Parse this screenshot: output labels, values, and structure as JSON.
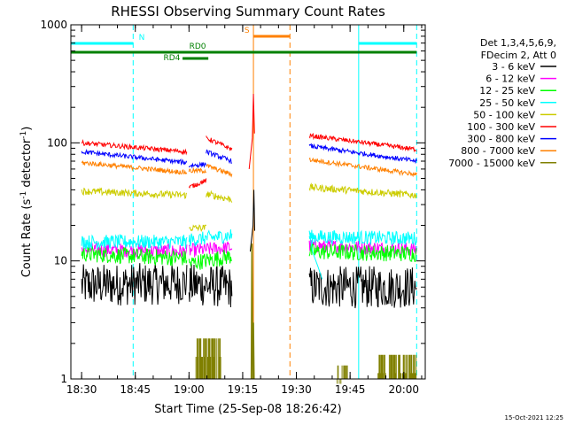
{
  "chart_data": {
    "type": "line",
    "title": "RHESSI Observing Summary Count Rates",
    "xlabel": "Start Time (25-Sep-08 18:26:42)",
    "ylabel_main": "Count Rate (s",
    "ylabel_sup1": "-1",
    "ylabel_mid": " detector",
    "ylabel_sup2": "-1",
    "ylabel_end": ")",
    "y_scale": "log",
    "ylim": [
      1,
      1000
    ],
    "xlim_minutes": [
      18.45,
      20.1
    ],
    "x_ticks": [
      {
        "value": 18.5,
        "label": "18:30"
      },
      {
        "value": 18.75,
        "label": "18:45"
      },
      {
        "value": 19.0,
        "label": "19:00"
      },
      {
        "value": 19.25,
        "label": "19:15"
      },
      {
        "value": 19.5,
        "label": "19:30"
      },
      {
        "value": 19.75,
        "label": "19:45"
      },
      {
        "value": 20.0,
        "label": "20:00"
      }
    ],
    "y_ticks": [
      {
        "value": 1,
        "label": "1"
      },
      {
        "value": 10,
        "label": "10"
      },
      {
        "value": 100,
        "label": "100"
      },
      {
        "value": 1000,
        "label": "1000"
      }
    ],
    "legend_placement": "right",
    "legend_header": [
      "Det 1,3,4,5,6,9,",
      "FDecim 2, Att 0"
    ],
    "series": [
      {
        "name": "3 - 6 keV",
        "color": "#000000",
        "segments": [
          [
            18.5,
            6.2,
            18.99,
            6.5
          ],
          [
            19.0,
            6.3,
            19.2,
            6.0
          ],
          [
            19.56,
            6.0,
            20.06,
            6.0
          ]
        ],
        "noise": 0.18
      },
      {
        "name": "6 - 12 keV",
        "color": "#ff00ff",
        "segments": [
          [
            18.5,
            12.5,
            18.99,
            12.0
          ],
          [
            19.0,
            12.2,
            19.2,
            13.0
          ],
          [
            19.56,
            13.5,
            20.06,
            12.5
          ]
        ],
        "noise": 0.06
      },
      {
        "name": "12 - 25 keV",
        "color": "#00ff00",
        "segments": [
          [
            18.5,
            11.5,
            18.99,
            10.5
          ],
          [
            19.0,
            9.5,
            19.2,
            11.0
          ],
          [
            19.56,
            12.0,
            20.06,
            11.5
          ]
        ],
        "noise": 0.07
      },
      {
        "name": "25 - 50 keV",
        "color": "#00ffff",
        "segments": [
          [
            18.5,
            14.5,
            18.99,
            14.5
          ],
          [
            19.0,
            15.0,
            19.2,
            16.5
          ],
          [
            19.56,
            16.0,
            20.06,
            15.5
          ]
        ],
        "noise": 0.06
      },
      {
        "name": "50 - 100 keV",
        "color": "#cccc00",
        "segments": [
          [
            18.5,
            39,
            18.99,
            36
          ],
          [
            19.0,
            19,
            19.08,
            19
          ],
          [
            19.08,
            37,
            19.2,
            33
          ],
          [
            19.56,
            42,
            20.06,
            36
          ]
        ],
        "noise": 0.03
      },
      {
        "name": "100 - 300 keV",
        "color": "#ff0000",
        "segments": [
          [
            18.5,
            100,
            18.99,
            84
          ],
          [
            19.0,
            42,
            19.08,
            48
          ],
          [
            19.08,
            110,
            19.2,
            88
          ],
          [
            19.56,
            115,
            20.06,
            88
          ]
        ],
        "noise": 0.02
      },
      {
        "name": "300 - 800 keV",
        "color": "#0000ff",
        "segments": [
          [
            18.5,
            84,
            18.99,
            68
          ],
          [
            19.0,
            64,
            19.08,
            66
          ],
          [
            19.08,
            84,
            19.2,
            70
          ],
          [
            19.56,
            94,
            20.06,
            70
          ]
        ],
        "noise": 0.02
      },
      {
        "name": "800 - 7000 keV",
        "color": "#ff8000",
        "segments": [
          [
            18.5,
            68,
            18.99,
            56
          ],
          [
            19.0,
            58,
            19.08,
            58
          ],
          [
            19.08,
            64,
            19.2,
            54
          ],
          [
            19.56,
            72,
            20.06,
            54
          ]
        ],
        "noise": 0.02
      },
      {
        "name": "7000 - 15000 keV",
        "color": "#808000",
        "segments": [
          [
            19.03,
            2.2,
            19.15,
            1.8
          ],
          [
            19.69,
            1.3,
            19.74,
            1.3
          ],
          [
            19.88,
            1.6,
            20.06,
            1.6
          ]
        ],
        "noise": 0.0
      }
    ],
    "flag_bars": [
      {
        "label": "N",
        "color": "#00ffff",
        "y": 49,
        "ranges": [
          [
            18.45,
            18.74
          ],
          [
            19.79,
            20.06
          ]
        ],
        "label_at": 18.78
      },
      {
        "label": "RD0",
        "color": "#008000",
        "y": 59,
        "ranges": [
          [
            18.45,
            20.06
          ]
        ],
        "label_at": 19.04
      },
      {
        "label": "RD4",
        "color": "#008000",
        "y": 66,
        "ranges": [
          [
            18.97,
            19.09
          ]
        ],
        "label_at": 18.92
      },
      {
        "label": "S",
        "color": "#ff8000",
        "y": 41,
        "ranges": [
          [
            19.3,
            19.47
          ]
        ],
        "label_at": 19.27
      }
    ],
    "vertical_lines": [
      {
        "x": 18.45,
        "color": "#00ffff",
        "style": "solid"
      },
      {
        "x": 18.74,
        "color": "#00ffff",
        "style": "dashed"
      },
      {
        "x": 19.79,
        "color": "#00ffff",
        "style": "solid"
      },
      {
        "x": 20.06,
        "color": "#00ffff",
        "style": "dashed"
      },
      {
        "x": 19.3,
        "color": "#ff8000",
        "style": "solid"
      },
      {
        "x": 19.47,
        "color": "#ff8000",
        "style": "dashed"
      }
    ]
  },
  "footer": {
    "timestamp": "15-Oct-2021 12:25"
  }
}
